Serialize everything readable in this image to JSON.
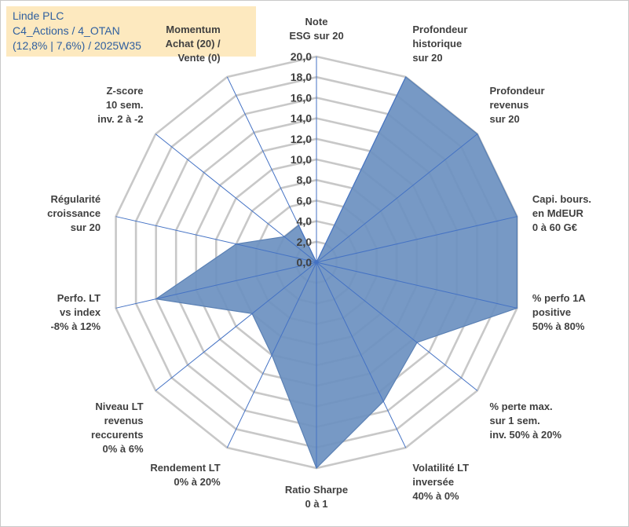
{
  "title_box": {
    "line1": "Linde PLC",
    "line2": "C4_Actions / 4_OTAN",
    "line3": "(12,8% | 7,6%) / 2025W35"
  },
  "chart_data": {
    "type": "radar",
    "r_range": [
      0,
      20
    ],
    "ticks": [
      "0,0",
      "2,0",
      "4,0",
      "6,0",
      "8,0",
      "10,0",
      "12,0",
      "14,0",
      "16,0",
      "18,0",
      "20,0"
    ],
    "axes": [
      {
        "label": [
          "Note",
          "ESG sur 20"
        ],
        "value": 0
      },
      {
        "label": [
          "Profondeur",
          "historique",
          "sur 20"
        ],
        "value": 20
      },
      {
        "label": [
          "Profondeur",
          "revenus",
          "sur 20"
        ],
        "value": 20
      },
      {
        "label": [
          "Capi. bours.",
          "en MdEUR",
          "0 à 60 G€"
        ],
        "value": 20
      },
      {
        "label": [
          "% perfo 1A",
          "positive",
          "50% à 80%"
        ],
        "value": 20
      },
      {
        "label": [
          "% perte max.",
          "sur 1 sem.",
          "inv. 50% à 20%"
        ],
        "value": 12.5
      },
      {
        "label": [
          "Volatilité LT",
          "inversée",
          "40% à 0%"
        ],
        "value": 15
      },
      {
        "label": [
          "Ratio Sharpe",
          "0 à 1"
        ],
        "value": 20
      },
      {
        "label": [
          "Rendement LT",
          "0% à 20%"
        ],
        "value": 10
      },
      {
        "label": [
          "Niveau LT",
          "revenus",
          "reccurents",
          "0% à 6%"
        ],
        "value": 8
      },
      {
        "label": [
          "Perfo. LT",
          "vs index",
          "-8% à 12%"
        ],
        "value": 16
      },
      {
        "label": [
          "Régularité",
          "croissance",
          "sur 20"
        ],
        "value": 8
      },
      {
        "label": [
          "Z-score",
          "10 sem.",
          "inv. 2 à -2"
        ],
        "value": 4
      },
      {
        "label": [
          "Momentum",
          "Achat (20) /",
          "Vente (0)"
        ],
        "value": 4
      }
    ],
    "colors": {
      "fill": "#6b90c0",
      "stroke": "#5a80b4",
      "grid": "#c8c8c8",
      "spoke": "#4472c4"
    },
    "grid": true
  }
}
